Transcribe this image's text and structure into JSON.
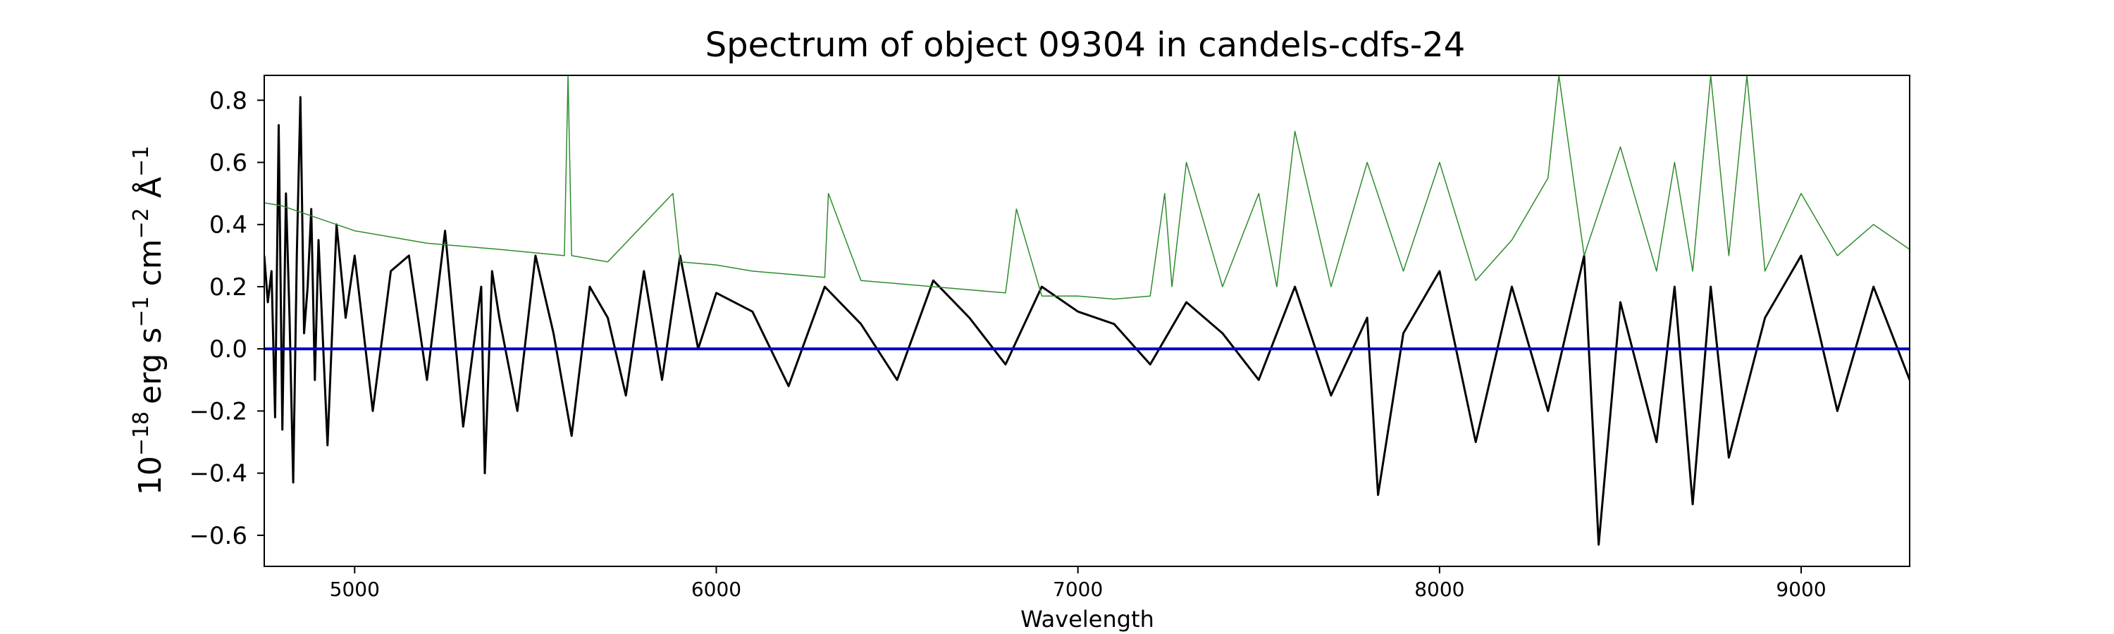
{
  "chart_data": {
    "type": "line",
    "title": "Spectrum of object 09304 in candels-cdfs-24",
    "xlabel": "Wavelength",
    "ylabel": {
      "base": "10",
      "exp_base": "−18",
      "units": "erg s",
      "exp_s": "−1",
      "cm": " cm",
      "exp_cm": "−2",
      "ang": " Å",
      "exp_ang": "−1"
    },
    "xlim": [
      4750,
      9300
    ],
    "ylim": [
      -0.7,
      0.88
    ],
    "xticks": [
      5000,
      6000,
      7000,
      8000,
      9000
    ],
    "xtick_labels": [
      "5000",
      "6000",
      "7000",
      "8000",
      "9000"
    ],
    "yticks": [
      -0.6,
      -0.4,
      -0.2,
      0.0,
      0.2,
      0.4,
      0.6,
      0.8
    ],
    "ytick_labels": [
      "−0.6",
      "−0.4",
      "−0.2",
      "0.0",
      "0.2",
      "0.4",
      "0.6",
      "0.8"
    ],
    "grid": false,
    "legend": "none",
    "series": [
      {
        "role": "flux",
        "color": "#000000",
        "x": [
          4750,
          4760,
          4770,
          4780,
          4790,
          4800,
          4810,
          4820,
          4830,
          4840,
          4850,
          4860,
          4870,
          4880,
          4890,
          4900,
          4925,
          4950,
          4975,
          5000,
          5050,
          5100,
          5150,
          5200,
          5250,
          5300,
          5350,
          5360,
          5380,
          5400,
          5450,
          5500,
          5550,
          5600,
          5650,
          5700,
          5750,
          5800,
          5850,
          5900,
          5950,
          6000,
          6100,
          6200,
          6300,
          6400,
          6500,
          6600,
          6700,
          6800,
          6900,
          7000,
          7100,
          7200,
          7300,
          7400,
          7500,
          7600,
          7700,
          7800,
          7830,
          7900,
          8000,
          8100,
          8200,
          8300,
          8400,
          8440,
          8500,
          8600,
          8650,
          8700,
          8750,
          8800,
          8900,
          9000,
          9100,
          9200,
          9300
        ],
        "y": [
          0.3,
          0.15,
          0.25,
          -0.22,
          0.72,
          -0.26,
          0.5,
          0.1,
          -0.43,
          0.3,
          0.81,
          0.05,
          0.2,
          0.45,
          -0.1,
          0.35,
          -0.31,
          0.4,
          0.1,
          0.3,
          -0.2,
          0.25,
          0.3,
          -0.1,
          0.38,
          -0.25,
          0.2,
          -0.4,
          0.25,
          0.1,
          -0.2,
          0.3,
          0.05,
          -0.28,
          0.2,
          0.1,
          -0.15,
          0.25,
          -0.1,
          0.3,
          0.0,
          0.18,
          0.12,
          -0.12,
          0.2,
          0.08,
          -0.1,
          0.22,
          0.1,
          -0.05,
          0.2,
          0.12,
          0.08,
          -0.05,
          0.15,
          0.05,
          -0.1,
          0.2,
          -0.15,
          0.1,
          -0.47,
          0.05,
          0.25,
          -0.3,
          0.2,
          -0.2,
          0.3,
          -0.63,
          0.15,
          -0.3,
          0.2,
          -0.5,
          0.2,
          -0.35,
          0.1,
          0.3,
          -0.2,
          0.2,
          -0.1
        ]
      },
      {
        "role": "error",
        "color": "#2e8b2e",
        "x": [
          4750,
          4800,
          4900,
          5000,
          5200,
          5400,
          5580,
          5590,
          5600,
          5700,
          5880,
          5900,
          6000,
          6100,
          6200,
          6300,
          6310,
          6400,
          6500,
          6600,
          6700,
          6800,
          6830,
          6900,
          7000,
          7100,
          7200,
          7240,
          7260,
          7300,
          7400,
          7500,
          7550,
          7600,
          7700,
          7800,
          7900,
          8000,
          8100,
          8200,
          8300,
          8330,
          8400,
          8500,
          8600,
          8650,
          8700,
          8750,
          8800,
          8850,
          8900,
          9000,
          9100,
          9200,
          9300
        ],
        "y": [
          0.47,
          0.46,
          0.42,
          0.38,
          0.34,
          0.32,
          0.3,
          0.88,
          0.3,
          0.28,
          0.5,
          0.28,
          0.27,
          0.25,
          0.24,
          0.23,
          0.5,
          0.22,
          0.21,
          0.2,
          0.19,
          0.18,
          0.45,
          0.17,
          0.17,
          0.16,
          0.17,
          0.5,
          0.2,
          0.6,
          0.2,
          0.5,
          0.2,
          0.7,
          0.2,
          0.6,
          0.25,
          0.6,
          0.22,
          0.35,
          0.55,
          0.88,
          0.3,
          0.65,
          0.25,
          0.6,
          0.25,
          0.88,
          0.3,
          0.88,
          0.25,
          0.5,
          0.3,
          0.4,
          0.32
        ]
      },
      {
        "role": "zero",
        "color": "#0000cc",
        "x": [
          4750,
          9300
        ],
        "y": [
          0.0,
          0.0
        ]
      }
    ]
  }
}
